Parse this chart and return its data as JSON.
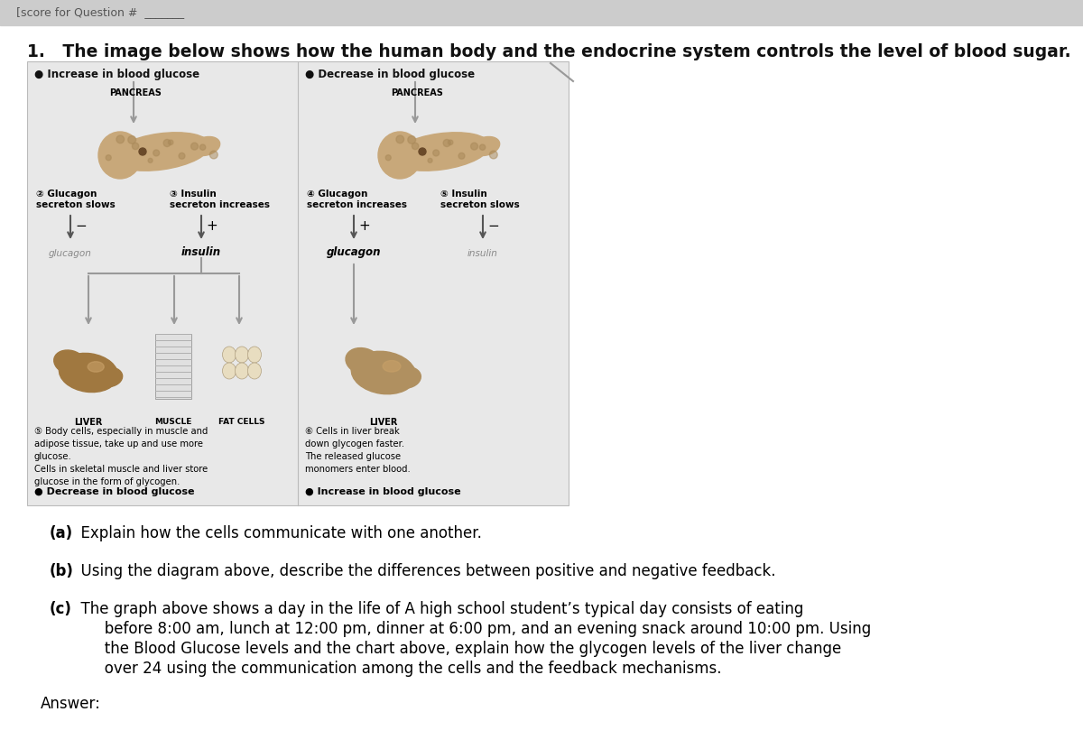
{
  "title": "1.   The image below shows how the human body and the endocrine system controls the level of blood sugar.",
  "title_fontsize": 13.5,
  "left_header": "● Increase in blood glucose",
  "right_header": "● Decrease in blood glucose",
  "left_gluc_label": "② Glucagon\nsecreton slows",
  "left_ins_label": "③ Insulin\nsecreton increases",
  "right_gluc_label": "④ Glucagon\nsecreton increases",
  "right_ins_label": "⑤ Insulin\nsecreton slows",
  "pancreas_label": "PANCREAS",
  "liver_label": "LIVER",
  "muscle_label": "MUSCLE",
  "fat_label": "FAT CELLS",
  "liver_label2": "LIVER",
  "glucagon_text_left": "glucagon",
  "insulin_text_left": "insulin",
  "glucagon_text_right": "glucagon",
  "insulin_text_right": "insulin",
  "left_body_text1": "⑤ Body cells, especially in muscle and",
  "left_body_text2": "adipose tissue, take up and use more",
  "left_body_text3": "glucose.",
  "left_body_text4": "Cells in skeletal muscle and liver store",
  "left_body_text5": "glucose in the form of glycogen.",
  "right_body_text1": "⑥ Cells in liver break",
  "right_body_text2": "down glycogen faster.",
  "right_body_text3": "The released glucose",
  "right_body_text4": "monomers enter blood.",
  "left_footer": "● Decrease in blood glucose",
  "right_footer": "● Increase in blood glucose",
  "qa_a_bold": "(a)",
  "qa_a_rest": "  Explain how the cells communicate with one another.",
  "qa_b_bold": "(b)",
  "qa_b_rest": "  Using the diagram above, describe the differences between positive and negative feedback.",
  "qa_c_bold": "(c)",
  "qa_c_line1": "  The graph above shows a day in the life of A high school student’s typical day consists of eating",
  "qa_c_line2": "       before 8:00 am, lunch at 12:00 pm, dinner at 6:00 pm, and an evening snack around 10:00 pm. Using",
  "qa_c_line3": "       the Blood Glucose levels and the chart above, explain how the glycogen levels of the liver change",
  "qa_c_line4": "       over 24 using the communication among the cells and the feedback mechanisms.",
  "answer_label": "Answer:",
  "arrow_color": "#999999",
  "text_color": "#111111",
  "panel_bg": "#e8e8e8",
  "panel_border": "#bbbbbb"
}
